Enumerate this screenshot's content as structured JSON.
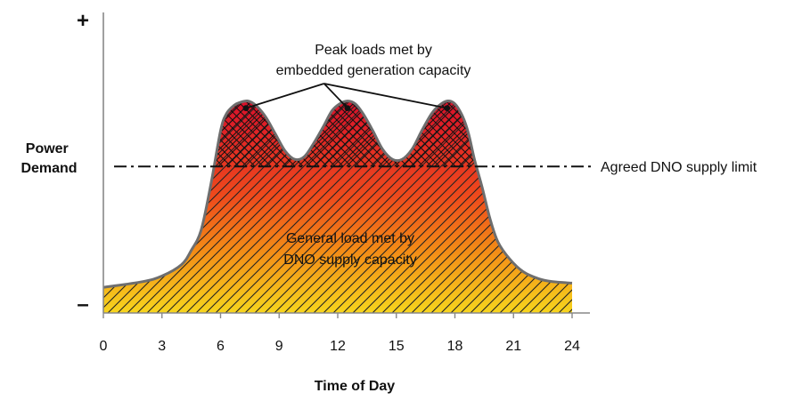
{
  "chart_data": {
    "type": "area",
    "title": "",
    "xlabel": "Time of Day",
    "ylabel": "Power Demand",
    "y_axis_top_symbol": "+",
    "y_axis_bottom_symbol": "–",
    "xlim": [
      0,
      24
    ],
    "ylim": [
      0,
      100
    ],
    "xticks": [
      0,
      3,
      6,
      9,
      12,
      15,
      18,
      21,
      24
    ],
    "xtick_labels": [
      "0",
      "3",
      "6",
      "9",
      "12",
      "15",
      "18",
      "21",
      "24"
    ],
    "series": [
      {
        "name": "Power demand",
        "x": [
          0,
          2,
          3,
          4,
          4.5,
          5,
          5.5,
          6,
          6.3,
          6.7,
          7,
          7.4,
          7.8,
          8.3,
          8.8,
          9.3,
          9.8,
          10.3,
          10.8,
          11.3,
          11.7,
          12.1,
          12.5,
          12.9,
          13.3,
          13.8,
          14.3,
          14.8,
          15.3,
          15.8,
          16.3,
          16.8,
          17.2,
          17.6,
          18,
          18.4,
          18.7,
          19,
          19.4,
          19.8,
          20.2,
          20.8,
          21.5,
          22.3,
          23,
          24
        ],
        "values": [
          9,
          11,
          13,
          17,
          22,
          29,
          45,
          64,
          70,
          73,
          74,
          74.5,
          73,
          69,
          63,
          57,
          54,
          55,
          60,
          66,
          71,
          73.5,
          74.5,
          73.5,
          70,
          64,
          57.5,
          54,
          54,
          57.5,
          64,
          70,
          73,
          74.5,
          73.5,
          69,
          63,
          54,
          44,
          33,
          25,
          19,
          14.5,
          12,
          11,
          10.5
        ]
      }
    ],
    "supply_limit": {
      "label": "Agreed DNO supply limit",
      "value": 51.5
    },
    "peak_markers": [
      {
        "x": 7.3,
        "y": 72
      },
      {
        "x": 12.5,
        "y": 72
      },
      {
        "x": 17.6,
        "y": 72
      }
    ],
    "annotations": {
      "peak_label_line1": "Peak loads met by",
      "peak_label_line2": "embedded generation capacity",
      "general_label_line1": "General load met by",
      "general_label_line2": "DNO supply capacity"
    },
    "colors": {
      "fill_top": "#d8102a",
      "fill_mid": "#ee4a1c",
      "fill_lower": "#f38a16",
      "fill_bottom": "#f7d51d",
      "outline": "#6e6e6e",
      "ink": "#111111"
    }
  }
}
